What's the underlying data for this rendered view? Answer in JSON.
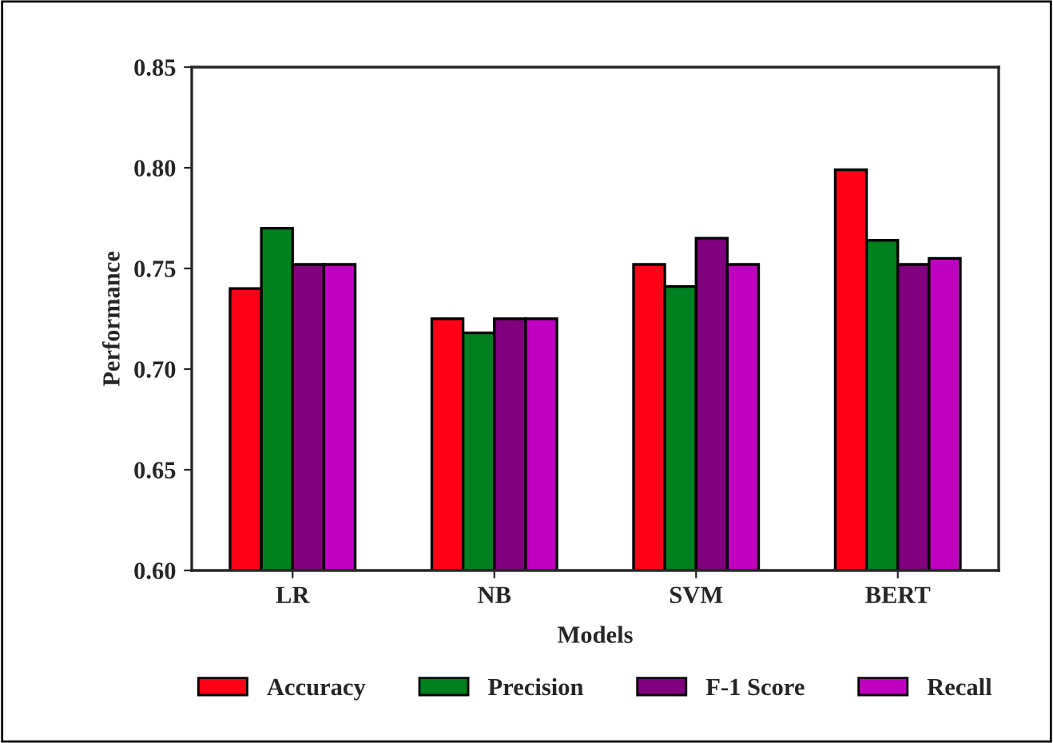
{
  "chart_data": {
    "type": "bar",
    "xlabel": "Models",
    "ylabel": "Performance",
    "categories": [
      "LR",
      "NB",
      "SVM",
      "BERT"
    ],
    "series": [
      {
        "name": "Accuracy",
        "color": "#ff0016",
        "values": [
          0.74,
          0.725,
          0.752,
          0.799
        ]
      },
      {
        "name": "Precision",
        "color": "#00801e",
        "values": [
          0.77,
          0.718,
          0.741,
          0.764
        ]
      },
      {
        "name": "F-1 Score",
        "color": "#800080",
        "values": [
          0.752,
          0.725,
          0.765,
          0.752
        ]
      },
      {
        "name": "Recall",
        "color": "#c000c0",
        "values": [
          0.752,
          0.725,
          0.752,
          0.755
        ]
      }
    ],
    "ylim": [
      0.6,
      0.85
    ],
    "yticks": [
      {
        "value": 0.6,
        "label": "0.60"
      },
      {
        "value": 0.65,
        "label": "0.65"
      },
      {
        "value": 0.7,
        "label": "0.70"
      },
      {
        "value": 0.75,
        "label": "0.75"
      },
      {
        "value": 0.8,
        "label": "0.80"
      },
      {
        "value": 0.85,
        "label": "0.85"
      }
    ],
    "grid": false,
    "legend": "bottom"
  }
}
